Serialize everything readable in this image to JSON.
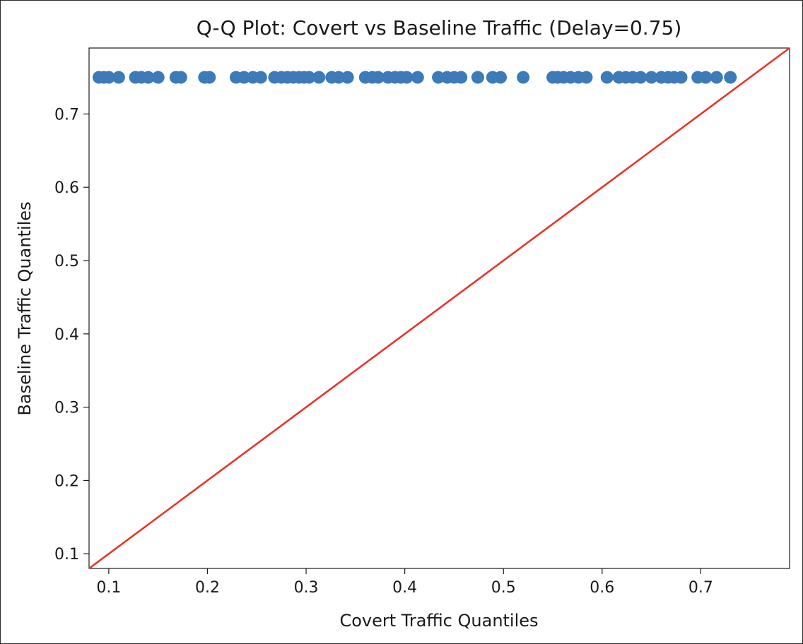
{
  "chart_data": {
    "type": "scatter",
    "title": "Q-Q Plot: Covert vs Baseline Traffic (Delay=0.75)",
    "xlabel": "Covert Traffic Quantiles",
    "ylabel": "Baseline Traffic Quantiles",
    "xlim": [
      0.08,
      0.79
    ],
    "ylim": [
      0.08,
      0.79
    ],
    "xticks": [
      0.1,
      0.2,
      0.3,
      0.4,
      0.5,
      0.6,
      0.7
    ],
    "yticks": [
      0.1,
      0.2,
      0.3,
      0.4,
      0.5,
      0.6,
      0.7
    ],
    "grid": false,
    "points": {
      "y": 0.75,
      "x": [
        0.09,
        0.095,
        0.1,
        0.11,
        0.127,
        0.133,
        0.14,
        0.15,
        0.168,
        0.173,
        0.197,
        0.202,
        0.229,
        0.237,
        0.246,
        0.254,
        0.268,
        0.275,
        0.281,
        0.287,
        0.293,
        0.298,
        0.303,
        0.313,
        0.326,
        0.333,
        0.342,
        0.36,
        0.367,
        0.373,
        0.383,
        0.39,
        0.396,
        0.402,
        0.413,
        0.434,
        0.443,
        0.45,
        0.457,
        0.474,
        0.489,
        0.497,
        0.52,
        0.55,
        0.555,
        0.561,
        0.568,
        0.576,
        0.584,
        0.605,
        0.617,
        0.624,
        0.631,
        0.639,
        0.65,
        0.66,
        0.667,
        0.673,
        0.68,
        0.697,
        0.705,
        0.716,
        0.73
      ],
      "color": "#3d7ab8"
    },
    "reference_line": {
      "from": [
        0.08,
        0.08
      ],
      "to": [
        0.79,
        0.79
      ],
      "color": "#e8352a"
    }
  }
}
